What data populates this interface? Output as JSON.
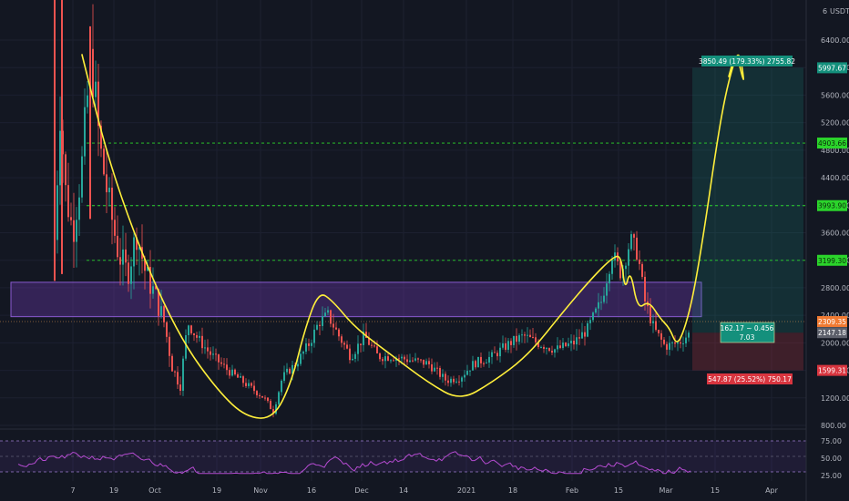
{
  "chart_data": {
    "type": "candlestick",
    "currency": "USDT",
    "y_ticks": [
      6400,
      6000,
      5600,
      5200,
      4800,
      4400,
      4000,
      3600,
      3200,
      2800,
      2400,
      2000,
      1600,
      1200,
      800
    ],
    "x_labels": [
      "7",
      "19",
      "Oct",
      "19",
      "Nov",
      "16",
      "Dec",
      "14",
      "2021",
      "18",
      "Feb",
      "15",
      "Mar",
      "15",
      "Apr"
    ],
    "axis_prefix": "6",
    "levels": [
      {
        "value": 4903.66,
        "label": "4903.66",
        "color": "#2bd42b"
      },
      {
        "value": 3993.9,
        "label": "3993.90",
        "color": "#2bd42b"
      },
      {
        "value": 3199.3,
        "label": "3199.30",
        "color": "#2bd42b"
      }
    ],
    "target": {
      "value": 5997.67,
      "label": "5997.67"
    },
    "current": {
      "value": 2309.35,
      "label": "2309.35"
    },
    "entry": {
      "value": 2147.18,
      "label": "2147.18"
    },
    "stop": {
      "value": 1599.31,
      "label": "1599.31"
    },
    "zone": {
      "low": 2380,
      "high": 2880
    },
    "profit_box_label": "3850.49 (179.33%) 2755.82",
    "loss_box_label": "547.87 (25.52%) 750.17",
    "position_label_1": "162.17 ~ 0.456",
    "position_label_2": "7.03",
    "rsi": {
      "levels": [
        70,
        50,
        30
      ],
      "tick_labels": [
        "75.00",
        "50.00",
        "25.00"
      ]
    }
  }
}
